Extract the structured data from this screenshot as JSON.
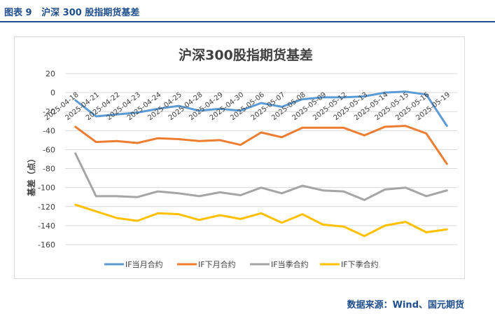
{
  "caption": {
    "figure_no": "图表 9",
    "title": "沪深 300 股指期货基差"
  },
  "source": "数据来源：Wind、国元期货",
  "colors": {
    "caption": "#1f4e8c",
    "grid": "#d9d9d9",
    "axis_text": "#404040"
  },
  "chart_data": {
    "type": "line",
    "title": "沪深300股指期货基差",
    "ylabel": "基差（点）",
    "xlabel": "",
    "ylim": [
      -160,
      20
    ],
    "yticks": [
      20,
      0,
      -20,
      -40,
      -60,
      -80,
      -100,
      -120,
      -140,
      -160
    ],
    "grid": true,
    "legend_position": "bottom",
    "categories": [
      "2025-04-18",
      "2025-04-21",
      "2025-04-22",
      "2025-04-23",
      "2025-04-24",
      "2025-04-25",
      "2025-04-28",
      "2025-04-29",
      "2025-04-30",
      "2025-05-06",
      "2025-05-07",
      "2025-05-08",
      "2025-05-09",
      "2025-05-12",
      "2025-05-13",
      "2025-05-14",
      "2025-05-15",
      "2025-05-16",
      "2025-05-19"
    ],
    "series": [
      {
        "name": "IF当月合约",
        "color": "#5b9bd5",
        "values": [
          -8,
          -25,
          -23,
          -21,
          -17,
          -14,
          -19,
          -17,
          -19,
          -11,
          -15,
          -7,
          -5,
          -5,
          -4,
          0,
          1,
          -2,
          -35
        ]
      },
      {
        "name": "IF下月合约",
        "color": "#ed7d31",
        "values": [
          -36,
          -52,
          -51,
          -53,
          -48,
          -49,
          -51,
          -50,
          -55,
          -42,
          -47,
          -37,
          -37,
          -37,
          -45,
          -36,
          -35,
          -43,
          -75
        ]
      },
      {
        "name": "IF当季合约",
        "color": "#a5a5a5",
        "values": [
          -64,
          -109,
          -109,
          -110,
          -104,
          -106,
          -109,
          -105,
          -108,
          -100,
          -106,
          -98,
          -103,
          -104,
          -113,
          -102,
          -100,
          -109,
          -103
        ]
      },
      {
        "name": "IF下季合约",
        "color": "#ffc000",
        "values": [
          -118,
          -125,
          -132,
          -135,
          -127,
          -128,
          -134,
          -129,
          -133,
          -127,
          -137,
          -128,
          -139,
          -141,
          -151,
          -140,
          -136,
          -147,
          -144
        ]
      }
    ]
  }
}
